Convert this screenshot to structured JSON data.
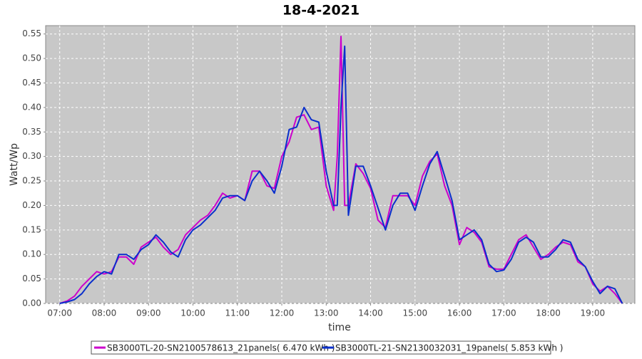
{
  "chart_data": {
    "type": "line",
    "title": "18-4-2021",
    "x_label": "time",
    "y_label": "Watt/Wp",
    "x": [
      "07:00",
      "07:10",
      "07:20",
      "07:30",
      "07:40",
      "07:50",
      "08:00",
      "08:10",
      "08:20",
      "08:30",
      "08:40",
      "08:50",
      "09:00",
      "09:10",
      "09:20",
      "09:30",
      "09:40",
      "09:50",
      "10:00",
      "10:10",
      "10:20",
      "10:30",
      "10:40",
      "10:50",
      "11:00",
      "11:10",
      "11:20",
      "11:30",
      "11:40",
      "11:50",
      "12:00",
      "12:10",
      "12:20",
      "12:30",
      "12:40",
      "12:50",
      "13:00",
      "13:10",
      "13:15",
      "13:20",
      "13:25",
      "13:30",
      "13:40",
      "13:50",
      "14:00",
      "14:10",
      "14:20",
      "14:30",
      "14:40",
      "14:50",
      "15:00",
      "15:10",
      "15:20",
      "15:30",
      "15:40",
      "15:50",
      "16:00",
      "16:10",
      "16:20",
      "16:30",
      "16:40",
      "16:50",
      "17:00",
      "17:10",
      "17:20",
      "17:30",
      "17:40",
      "17:50",
      "18:00",
      "18:10",
      "18:20",
      "18:30",
      "18:40",
      "18:50",
      "19:00",
      "19:10",
      "19:20",
      "19:30",
      "19:40"
    ],
    "series": [
      {
        "name": "SB3000TL-20-SN2100578613_21panels( 6.470 kWh )",
        "color": "#cc00cc",
        "values": [
          0,
          0.005,
          0.015,
          0.035,
          0.05,
          0.065,
          0.06,
          0.065,
          0.095,
          0.095,
          0.08,
          0.115,
          0.125,
          0.135,
          0.115,
          0.1,
          0.11,
          0.14,
          0.155,
          0.17,
          0.18,
          0.2,
          0.225,
          0.215,
          0.22,
          0.21,
          0.27,
          0.27,
          0.24,
          0.235,
          0.3,
          0.33,
          0.38,
          0.385,
          0.355,
          0.36,
          0.24,
          0.19,
          0.3,
          0.545,
          0.2,
          0.2,
          0.285,
          0.265,
          0.235,
          0.17,
          0.155,
          0.22,
          0.22,
          0.22,
          0.2,
          0.26,
          0.29,
          0.305,
          0.24,
          0.2,
          0.12,
          0.155,
          0.145,
          0.125,
          0.075,
          0.07,
          0.07,
          0.1,
          0.13,
          0.14,
          0.115,
          0.09,
          0.1,
          0.115,
          0.125,
          0.12,
          0.085,
          0.075,
          0.04,
          0.025,
          0.035,
          0.02,
          0
        ]
      },
      {
        "name": "SB3000TL-21-SN2130032031_19panels( 5.853 kWh )",
        "color": "#0a2fcc",
        "values": [
          0,
          0.003,
          0.008,
          0.02,
          0.04,
          0.055,
          0.065,
          0.06,
          0.1,
          0.1,
          0.09,
          0.11,
          0.12,
          0.14,
          0.125,
          0.105,
          0.095,
          0.13,
          0.15,
          0.16,
          0.175,
          0.19,
          0.215,
          0.22,
          0.22,
          0.21,
          0.25,
          0.27,
          0.25,
          0.225,
          0.28,
          0.355,
          0.36,
          0.4,
          0.375,
          0.37,
          0.27,
          0.2,
          0.2,
          0.4,
          0.525,
          0.18,
          0.28,
          0.28,
          0.24,
          0.195,
          0.15,
          0.2,
          0.225,
          0.225,
          0.19,
          0.24,
          0.285,
          0.31,
          0.26,
          0.21,
          0.13,
          0.14,
          0.15,
          0.13,
          0.08,
          0.065,
          0.068,
          0.09,
          0.125,
          0.135,
          0.125,
          0.095,
          0.095,
          0.11,
          0.13,
          0.125,
          0.09,
          0.075,
          0.045,
          0.02,
          0.035,
          0.03,
          0
        ]
      }
    ],
    "xlim": [
      "06:41",
      "19:57"
    ],
    "xticks": [
      "07:00",
      "08:00",
      "09:00",
      "10:00",
      "11:00",
      "12:00",
      "13:00",
      "14:00",
      "15:00",
      "16:00",
      "17:00",
      "18:00",
      "19:00"
    ],
    "ylim": [
      0,
      0.567
    ],
    "yticks": [
      {
        "value": 0,
        "label": "0.00"
      },
      0.05,
      {
        "value": 0.1,
        "label": "0.10"
      },
      0.15,
      {
        "value": 0.2,
        "label": "0.20"
      },
      0.25,
      {
        "value": 0.3,
        "label": "0.30"
      },
      0.35,
      {
        "value": 0.4,
        "label": "0.40"
      },
      0.45,
      {
        "value": 0.5,
        "label": "0.50"
      },
      0.55
    ],
    "grid": true,
    "legend": "bottom"
  }
}
